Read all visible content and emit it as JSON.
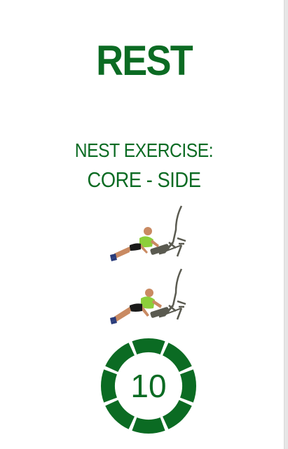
{
  "colors": {
    "primary": "#0b6b23",
    "skin": "#c98a62",
    "shirt": "#8ccf3a",
    "shorts": "#1a1a1a",
    "machine": "#5a5a50"
  },
  "rest": {
    "title": "REST"
  },
  "next_exercise": {
    "label": "NEST EXERCISE:",
    "name": "CORE - SIDE",
    "images": [
      "side-plank-machine-image-1",
      "side-plank-machine-image-2"
    ]
  },
  "timer": {
    "seconds": "10",
    "segments": 8,
    "remaining_fraction": 1
  }
}
